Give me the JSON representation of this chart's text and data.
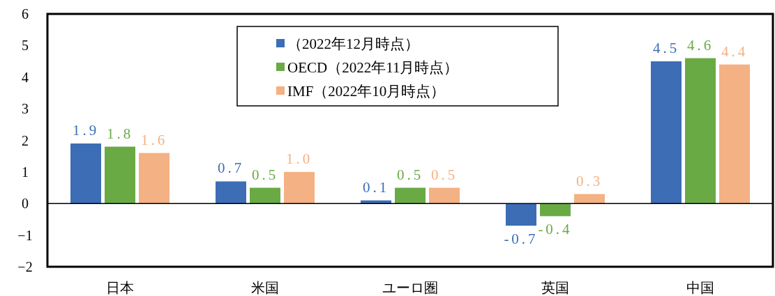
{
  "chart_data": {
    "type": "bar",
    "categories": [
      "日本",
      "米国",
      "ユーロ圏",
      "英国",
      "中国"
    ],
    "series": [
      {
        "name": "（2022年12月時点）",
        "color": "#3c6db5",
        "values": [
          1.9,
          0.7,
          0.1,
          -0.7,
          4.5
        ],
        "value_labels": [
          "1.9",
          "0.7",
          "0.1",
          "-0.7",
          "4.5"
        ]
      },
      {
        "name": "OECD（2022年11月時点）",
        "color": "#6aaa45",
        "values": [
          1.8,
          0.5,
          0.5,
          -0.4,
          4.6
        ],
        "value_labels": [
          "1.8",
          "0.5",
          "0.5",
          "-0.4",
          "4.6"
        ]
      },
      {
        "name": "IMF（2022年10月時点）",
        "color": "#f4b183",
        "values": [
          1.6,
          1.0,
          0.5,
          0.3,
          4.4
        ],
        "value_labels": [
          "1.6",
          "1.0",
          "0.5",
          "0.3",
          "4.4"
        ]
      }
    ],
    "ylim": [
      -2,
      6
    ],
    "yticks": [
      -2,
      -1,
      0,
      1,
      2,
      3,
      4,
      5,
      6
    ],
    "legend": "top"
  }
}
